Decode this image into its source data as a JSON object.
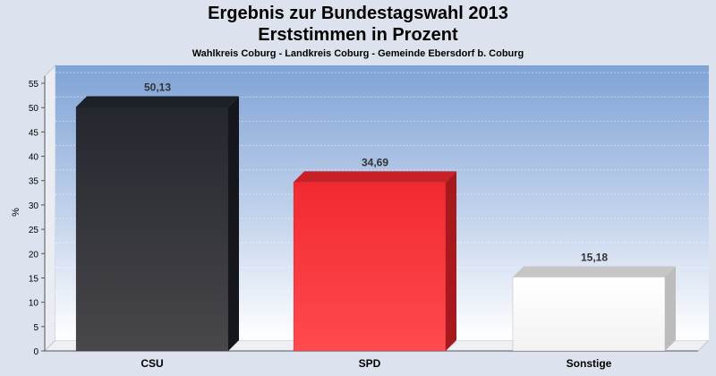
{
  "header": {
    "title_line1": "Ergebnis zur Bundestagswahl 2013",
    "title_line2": "Erststimmen in Prozent",
    "subtitle": "Wahlkreis Coburg - Landkreis Coburg - Gemeinde Ebersdorf b. Coburg"
  },
  "chart_data": {
    "type": "bar",
    "title": "Ergebnis zur Bundestagswahl 2013",
    "subtitle": "Erststimmen in Prozent",
    "xlabel": "",
    "ylabel": "%",
    "ylim": [
      0,
      58
    ],
    "yticks": [
      0,
      5,
      10,
      15,
      20,
      25,
      30,
      35,
      40,
      45,
      50,
      55
    ],
    "grid": true,
    "categories": [
      "CSU",
      "SPD",
      "Sonstige"
    ],
    "values": [
      50.13,
      34.69,
      15.18
    ],
    "data_labels": [
      "50,13",
      "34,69",
      "15,18"
    ],
    "colors": [
      "#2b2d33",
      "#f0262d",
      "#ffffff"
    ]
  }
}
